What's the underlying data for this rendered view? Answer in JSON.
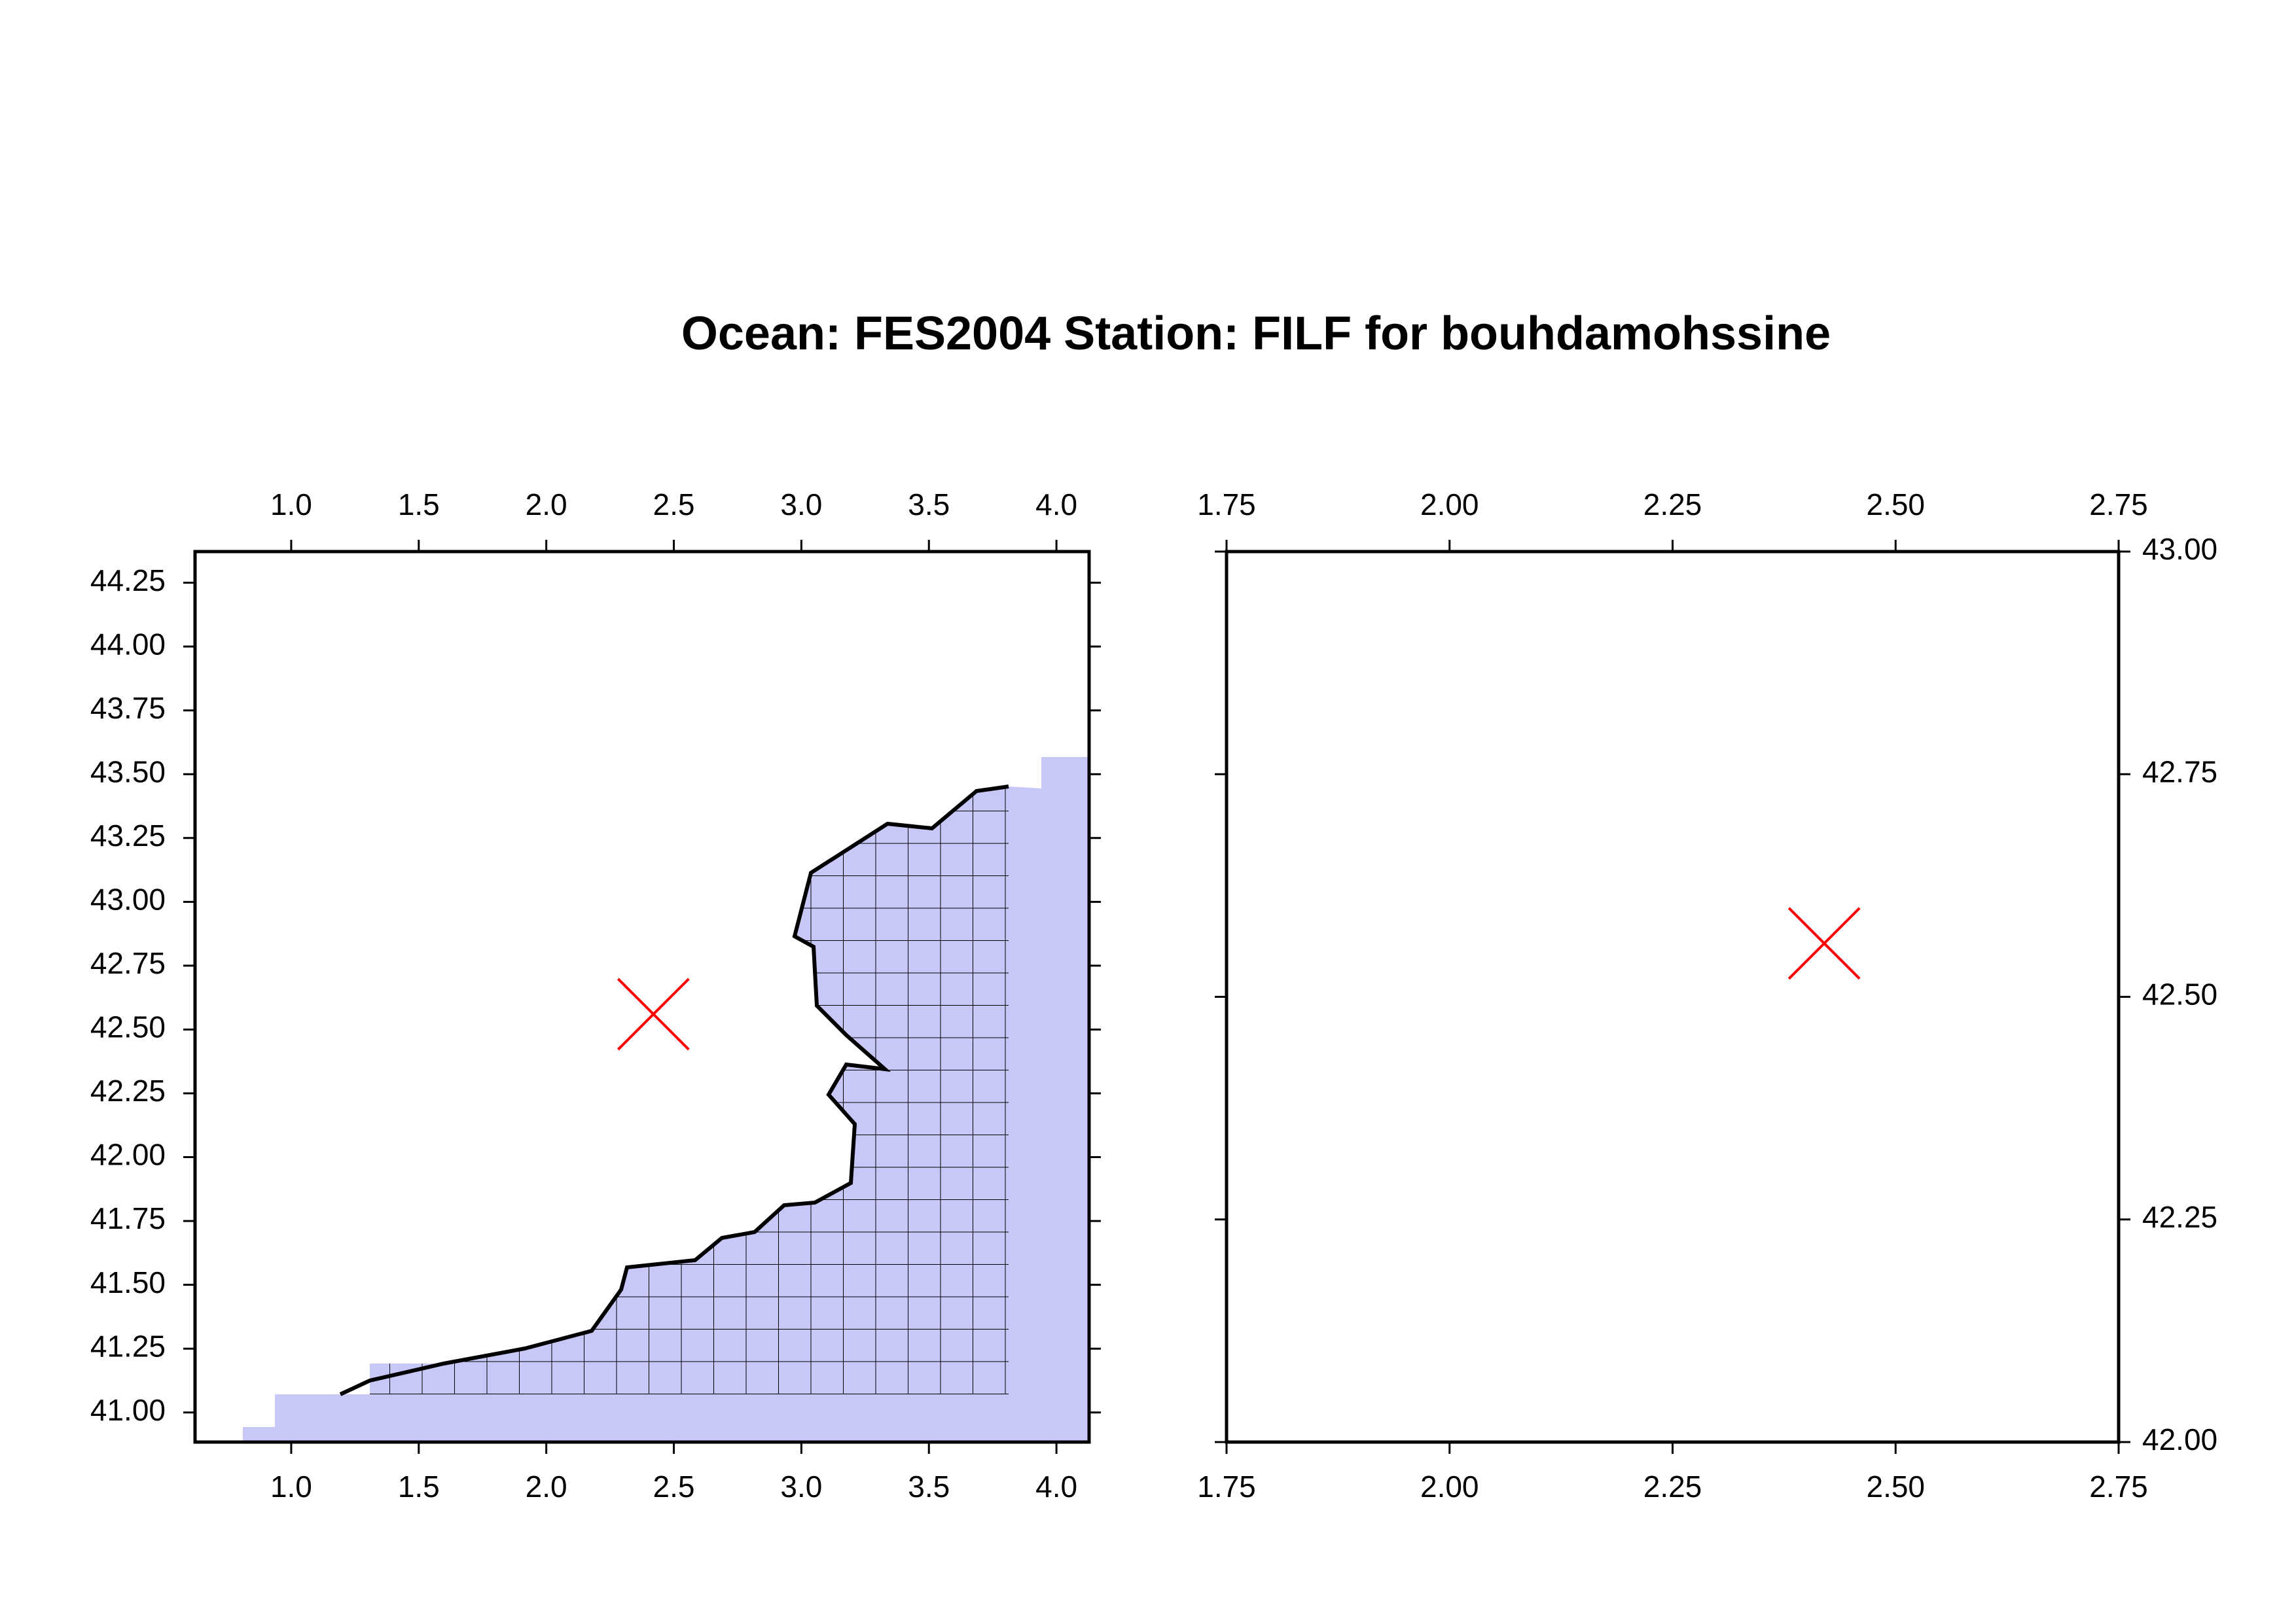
{
  "title": "Ocean: FES2004  Station: FILF  for bouhdamohssine",
  "chart_data": [
    {
      "type": "scatter",
      "xlim": [
        0.623,
        4.128
      ],
      "ylim": [
        40.884,
        44.372
      ],
      "xticks": [
        {
          "value": 1,
          "label": "1.0"
        },
        1.5,
        {
          "value": 2,
          "label": "2.0"
        },
        2.5,
        {
          "value": 3,
          "label": "3.0"
        },
        3.5,
        {
          "value": 4,
          "label": "4.0"
        }
      ],
      "yticks": [
        {
          "value": 41,
          "label": "41.00"
        },
        41.25,
        {
          "value": 41.5,
          "label": "41.50"
        },
        41.75,
        {
          "value": 42,
          "label": "42.00"
        },
        42.25,
        {
          "value": 42.5,
          "label": "42.50"
        },
        42.75,
        {
          "value": 43,
          "label": "43.00"
        },
        43.25,
        {
          "value": 43.5,
          "label": "43.50"
        },
        43.75,
        {
          "value": 44,
          "label": "44.00"
        },
        44.25
      ],
      "y_label_side": "left",
      "series": [
        {
          "x": [
            2.42
          ],
          "values": [
            42.56
          ],
          "color": "#ff0000",
          "marker": "x"
        }
      ]
    },
    {
      "type": "scatter",
      "xlim": [
        1.75,
        2.75
      ],
      "ylim": [
        42,
        43
      ],
      "xticks": [
        1.75,
        {
          "value": 2,
          "label": "2.00"
        },
        2.25,
        {
          "value": 2.5,
          "label": "2.50"
        },
        2.75
      ],
      "yticks": [
        {
          "value": 42,
          "label": "42.00"
        },
        42.25,
        {
          "value": 42.5,
          "label": "42.50"
        },
        42.75,
        {
          "value": 43,
          "label": "43.00"
        }
      ],
      "y_label_side": "right",
      "series": [
        {
          "x": [
            2.42
          ],
          "values": [
            42.56
          ],
          "color": "#ff0000",
          "marker": "x"
        }
      ]
    }
  ]
}
